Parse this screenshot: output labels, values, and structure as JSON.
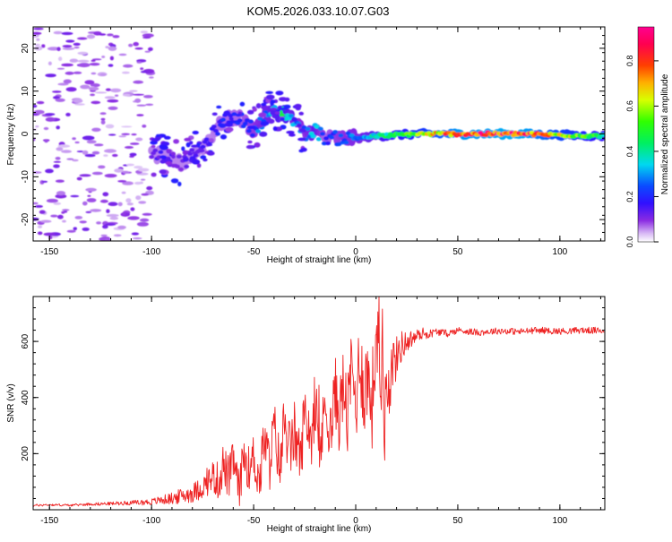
{
  "title": "KOM5.2026.033.10.07.G03",
  "chart_data": [
    {
      "type": "heatmap",
      "name": "spectrogram",
      "xlabel": "Height of straight line (km)",
      "ylabel": "Frequency (Hz)",
      "xlim": [
        -158,
        122
      ],
      "ylim": [
        -25,
        25
      ],
      "xticks": [
        -150,
        -100,
        -50,
        0,
        50,
        100
      ],
      "yticks": [
        -20,
        -10,
        0,
        10,
        20
      ],
      "xtick_labels": [
        "-150",
        "-100",
        "-50",
        "0",
        "50",
        "100"
      ],
      "ytick_labels": [
        "-20",
        "-10",
        "0",
        "10",
        "20"
      ],
      "colorbar": {
        "label": "Normalized spectral amplitude",
        "range": [
          0,
          0.95
        ],
        "ticks": [
          0.0,
          0.2,
          0.4,
          0.6,
          0.8
        ],
        "tick_labels": [
          "0.0",
          "0.2",
          "0.4",
          "0.6",
          "0.8"
        ],
        "colormap": "rainbow (lavender-purple-blue-cyan-green-yellow-orange-red-magenta)"
      },
      "ridge": {
        "description": "dominant frequency track vs height",
        "x": [
          -95,
          -85,
          -75,
          -65,
          -58,
          -50,
          -42,
          -35,
          -30,
          -25,
          -20,
          -15,
          -10,
          0,
          10,
          30,
          50,
          80,
          122
        ],
        "freq": [
          -5,
          -7,
          -3,
          3,
          4,
          1,
          5,
          5,
          3,
          0,
          1,
          -1,
          -1,
          -1,
          -0.5,
          0,
          0,
          0,
          -0.5
        ],
        "amplitude": [
          0.15,
          0.12,
          0.15,
          0.2,
          0.2,
          0.25,
          0.35,
          0.45,
          0.3,
          0.25,
          0.4,
          0.2,
          0.25,
          0.3,
          0.4,
          0.6,
          0.85,
          0.9,
          0.45
        ]
      },
      "noise_region": {
        "x": [
          -158,
          -100
        ],
        "freq": [
          -25,
          25
        ],
        "amplitude": [
          0.03,
          0.12
        ]
      }
    },
    {
      "type": "line",
      "name": "snr",
      "xlabel": "Height of straight line (km)",
      "ylabel": "SNR (v/v)",
      "xlim": [
        -158,
        122
      ],
      "ylim": [
        0,
        760
      ],
      "xticks": [
        -150,
        -100,
        -50,
        0,
        50,
        100
      ],
      "yticks": [
        200,
        400,
        600
      ],
      "xtick_labels": [
        "-150",
        "-100",
        "-50",
        "0",
        "50",
        "100"
      ],
      "ytick_labels": [
        "200",
        "400",
        "600"
      ],
      "color": "#ee2222",
      "series": [
        {
          "name": "SNR",
          "x": [
            -158,
            -150,
            -140,
            -130,
            -120,
            -110,
            -100,
            -95,
            -90,
            -85,
            -80,
            -75,
            -70,
            -67,
            -65,
            -62,
            -60,
            -57,
            -55,
            -52,
            -50,
            -47,
            -45,
            -42,
            -40,
            -37,
            -35,
            -32,
            -30,
            -27,
            -25,
            -22,
            -20,
            -17,
            -15,
            -12,
            -10,
            -8,
            -6,
            -4,
            -2,
            0,
            2,
            4,
            6,
            8,
            10,
            11,
            12,
            13,
            14,
            15,
            16,
            18,
            20,
            22,
            25,
            28,
            30,
            33,
            35,
            40,
            45,
            50,
            60,
            70,
            80,
            90,
            100,
            110,
            122
          ],
          "y": [
            15,
            18,
            16,
            20,
            22,
            25,
            28,
            35,
            40,
            50,
            60,
            80,
            120,
            100,
            160,
            110,
            180,
            60,
            200,
            140,
            190,
            100,
            250,
            160,
            300,
            140,
            320,
            200,
            280,
            170,
            360,
            260,
            310,
            220,
            380,
            280,
            420,
            330,
            450,
            320,
            520,
            360,
            560,
            420,
            480,
            380,
            600,
            760,
            380,
            640,
            250,
            560,
            420,
            520,
            540,
            580,
            600,
            610,
            620,
            630,
            625,
            635,
            628,
            640,
            632,
            638,
            635,
            640,
            636,
            640,
            638
          ],
          "noise_amplitude": [
            4,
            4,
            4,
            5,
            6,
            8,
            12,
            16,
            22,
            28,
            35,
            40,
            60,
            70,
            80,
            80,
            70,
            70,
            80,
            80,
            90,
            90,
            95,
            95,
            100,
            100,
            110,
            110,
            110,
            110,
            110,
            110,
            110,
            110,
            120,
            120,
            130,
            130,
            140,
            140,
            150,
            150,
            160,
            160,
            170,
            170,
            200,
            200,
            180,
            180,
            160,
            140,
            120,
            100,
            80,
            60,
            40,
            30,
            24,
            20,
            16,
            14,
            12,
            12,
            12,
            12,
            12,
            12,
            12,
            12,
            12
          ]
        }
      ]
    }
  ]
}
